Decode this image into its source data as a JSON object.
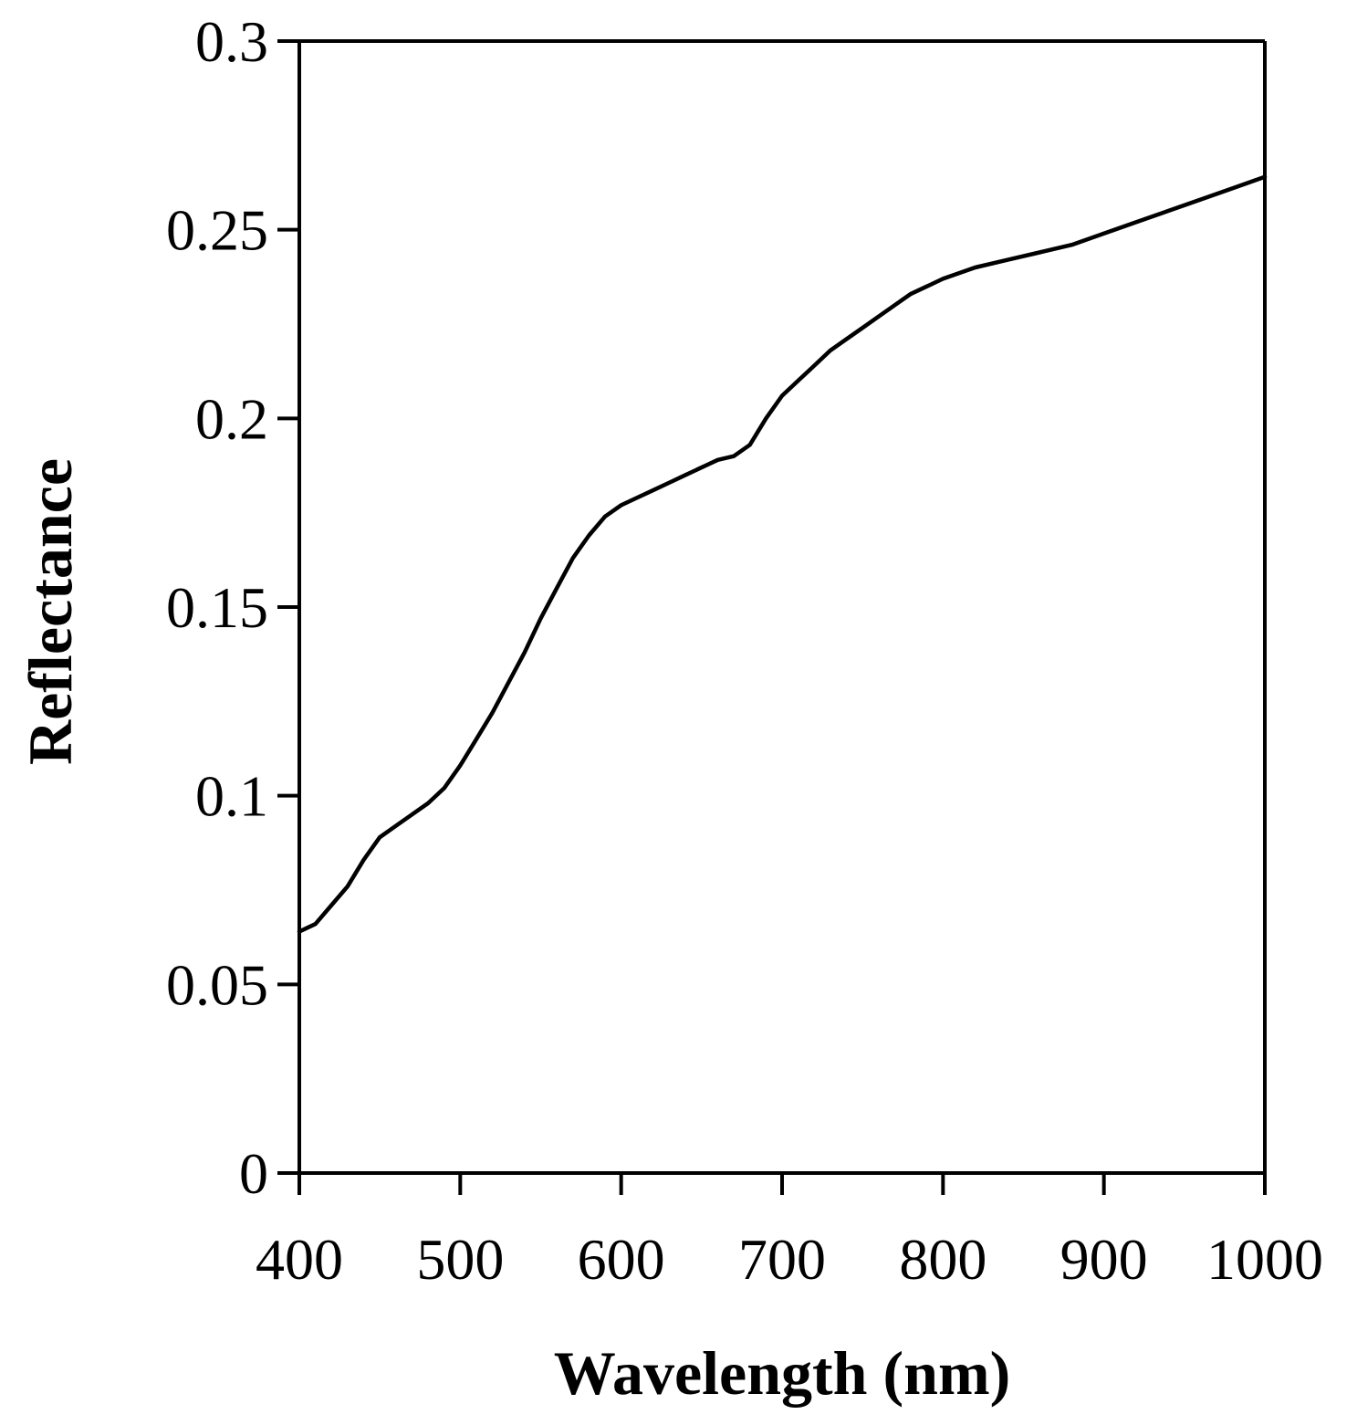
{
  "chart_data": {
    "type": "line",
    "title": "",
    "xlabel": "Wavelength (nm)",
    "ylabel": "Reflectance",
    "xlim": [
      400,
      1000
    ],
    "ylim": [
      0,
      0.3
    ],
    "x_ticks": [
      "400",
      "500",
      "600",
      "700",
      "800",
      "900",
      "1000"
    ],
    "y_ticks": [
      "0",
      "0.05",
      "0.1",
      "0.15",
      "0.2",
      "0.25",
      "0.3"
    ],
    "grid": false,
    "legend": "none",
    "line_color": "#000000",
    "series": [
      {
        "x": [
          400,
          410,
          420,
          430,
          440,
          450,
          460,
          470,
          480,
          490,
          500,
          510,
          520,
          530,
          540,
          550,
          560,
          570,
          580,
          590,
          600,
          610,
          620,
          630,
          640,
          650,
          660,
          670,
          680,
          690,
          700,
          710,
          720,
          730,
          740,
          750,
          760,
          770,
          780,
          790,
          800,
          820,
          840,
          860,
          880,
          900,
          920,
          940,
          960,
          980,
          1000
        ],
        "y": [
          0.064,
          0.066,
          0.071,
          0.076,
          0.083,
          0.089,
          0.092,
          0.095,
          0.098,
          0.102,
          0.108,
          0.115,
          0.122,
          0.13,
          0.138,
          0.147,
          0.155,
          0.163,
          0.169,
          0.174,
          0.177,
          0.179,
          0.181,
          0.183,
          0.185,
          0.187,
          0.189,
          0.19,
          0.193,
          0.2,
          0.206,
          0.21,
          0.214,
          0.218,
          0.221,
          0.224,
          0.227,
          0.23,
          0.233,
          0.235,
          0.237,
          0.24,
          0.242,
          0.244,
          0.246,
          0.249,
          0.252,
          0.255,
          0.258,
          0.261,
          0.264
        ]
      }
    ]
  }
}
